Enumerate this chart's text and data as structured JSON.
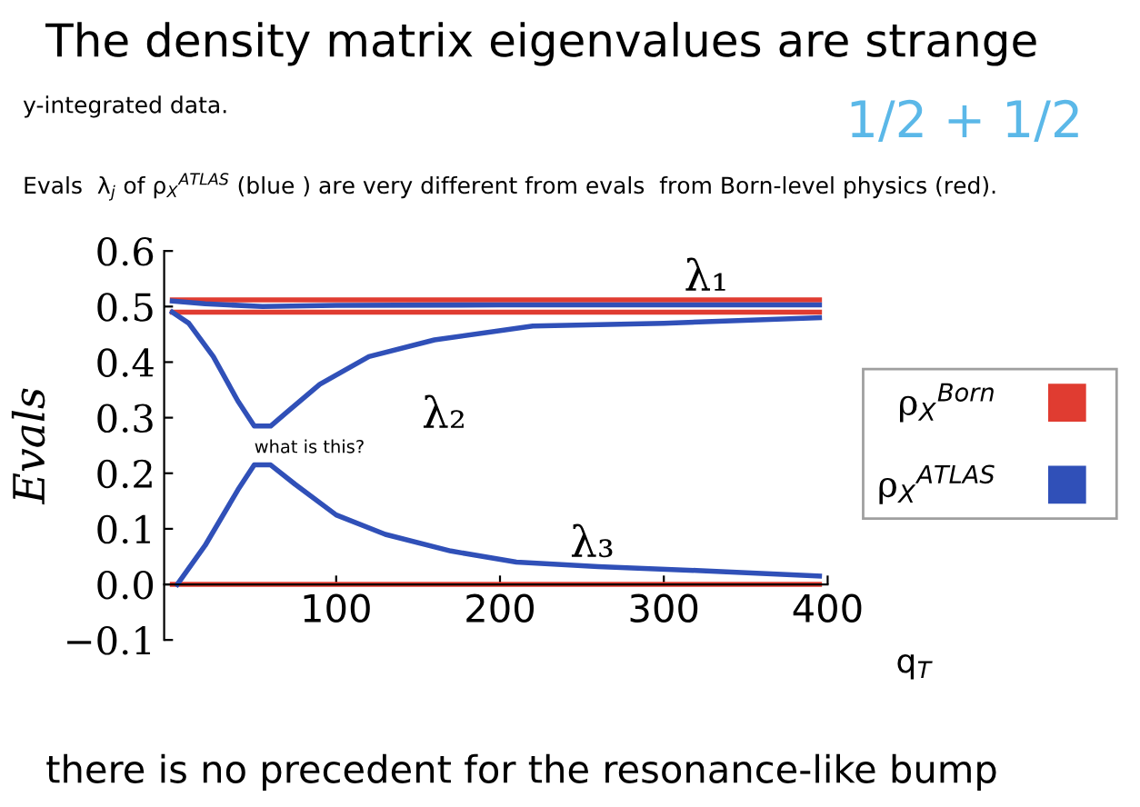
{
  "chart_data": {
    "type": "line",
    "title": "The density matrix eigenvalues are strange",
    "subtitle": "y-integrated data.",
    "xlabel": "q$_{T}$",
    "ylabel": "Evals",
    "xlim": [
      -5,
      400
    ],
    "xticks": [
      100,
      200,
      300,
      400
    ],
    "ylim": [
      -0.1,
      0.6
    ],
    "yticks": [
      {
        "value": -0.1,
        "label": "−0.1"
      },
      {
        "value": 0,
        "label": "0.0"
      },
      0.1,
      0.2,
      0.3,
      0.4,
      0.5,
      0.6
    ],
    "grid": false,
    "legend": "right",
    "marker": "none",
    "line_style": "solid",
    "series": [
      {
        "name": "ρ$_{X}$$^{Born}$",
        "color": "#e03c31",
        "x": [
          0,
          395
        ],
        "values": [
          0.512,
          0.512
        ]
      },
      {
        "color": "#e03c31",
        "x": [
          0,
          395
        ],
        "values": [
          0.49,
          0.49
        ]
      },
      {
        "color": "#e03c31",
        "x": [
          0,
          395
        ],
        "values": [
          0.0,
          0.0
        ]
      },
      {
        "name": "ρ$_{X}$$^{ATLAS}$",
        "color": "#3050b8",
        "x": [
          0,
          20,
          55,
          100,
          200,
          300,
          395
        ],
        "values": [
          0.51,
          0.505,
          0.5,
          0.502,
          0.503,
          0.503,
          0.503
        ]
      },
      {
        "color": "#3050b8",
        "x": [
          0,
          10,
          25,
          40,
          50,
          60,
          70,
          90,
          120,
          160,
          220,
          300,
          395
        ],
        "values": [
          0.49,
          0.47,
          0.41,
          0.33,
          0.285,
          0.285,
          0.31,
          0.36,
          0.41,
          0.44,
          0.465,
          0.47,
          0.48
        ]
      },
      {
        "color": "#3050b8",
        "x": [
          3,
          20,
          40,
          50,
          60,
          75,
          100,
          130,
          170,
          210,
          260,
          320,
          395
        ],
        "values": [
          0.0,
          0.07,
          0.17,
          0.215,
          0.215,
          0.18,
          0.125,
          0.09,
          0.06,
          0.04,
          0.032,
          0.025,
          0.015
        ]
      }
    ],
    "annotations": [
      "Evals  λ$_{j}$ of ρ$_{X}$$^{ATLAS}$ (blue ) are very different from evals  from Born-level physics (red).",
      "1/2 + 1/2",
      "there is no precedent for the resonance-like bump",
      "λ₁",
      "λ₂",
      "λ₃",
      {
        "text": "what is this?",
        "x": 50,
        "y": 0.23
      }
    ]
  }
}
